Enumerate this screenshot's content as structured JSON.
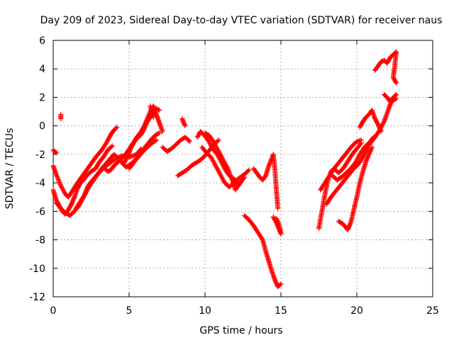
{
  "chart_data": {
    "type": "scatter",
    "title": "Day 209 of 2023, Sidereal Day-to-day VTEC variation (SDTVAR) for receiver naus",
    "xlabel": "GPS time / hours",
    "ylabel": "SDTVAR / TECUs",
    "xlim": [
      0,
      25
    ],
    "ylim": [
      -12,
      6
    ],
    "xticks": [
      0,
      5,
      10,
      15,
      20,
      25
    ],
    "yticks": [
      -12,
      -10,
      -8,
      -6,
      -4,
      -2,
      0,
      2,
      4,
      6
    ],
    "grid": true,
    "legend": "none",
    "marker": "+",
    "series": [
      {
        "name": "SDTVAR",
        "color": "#ff0000",
        "segments": [
          [
            [
              0.0,
              -4.5
            ],
            [
              0.2,
              -5.2
            ],
            [
              0.4,
              -5.6
            ],
            [
              0.6,
              -6.0
            ],
            [
              0.8,
              -6.2
            ],
            [
              1.0,
              -5.9
            ],
            [
              1.2,
              -5.5
            ],
            [
              1.4,
              -5.0
            ],
            [
              1.6,
              -4.4
            ],
            [
              1.8,
              -4.0
            ],
            [
              2.0,
              -3.8
            ],
            [
              2.2,
              -3.5
            ],
            [
              2.5,
              -3.2
            ],
            [
              2.8,
              -3.0
            ],
            [
              3.0,
              -2.6
            ],
            [
              3.3,
              -2.2
            ],
            [
              3.6,
              -1.7
            ],
            [
              3.9,
              -1.4
            ]
          ],
          [
            [
              0.0,
              -2.8
            ],
            [
              0.2,
              -3.4
            ],
            [
              0.5,
              -4.2
            ],
            [
              0.8,
              -4.8
            ],
            [
              1.0,
              -5.0
            ],
            [
              1.3,
              -4.5
            ],
            [
              1.6,
              -4.0
            ],
            [
              2.0,
              -3.4
            ],
            [
              2.4,
              -2.8
            ],
            [
              2.8,
              -2.2
            ],
            [
              3.2,
              -1.7
            ],
            [
              3.5,
              -1.2
            ],
            [
              3.8,
              -0.6
            ],
            [
              4.0,
              -0.3
            ],
            [
              4.2,
              -0.1
            ]
          ],
          [
            [
              0.0,
              -1.7
            ],
            [
              0.1,
              -1.8
            ],
            [
              0.2,
              -1.9
            ]
          ],
          [
            [
              0.5,
              0.8
            ],
            [
              0.5,
              0.5
            ]
          ],
          [
            [
              0.2,
              -5.4
            ],
            [
              0.5,
              -5.8
            ],
            [
              0.8,
              -6.1
            ],
            [
              1.1,
              -6.3
            ],
            [
              1.4,
              -6.0
            ],
            [
              1.7,
              -5.6
            ],
            [
              2.0,
              -5.0
            ],
            [
              2.3,
              -4.2
            ],
            [
              2.6,
              -3.8
            ],
            [
              3.0,
              -3.3
            ],
            [
              3.5,
              -2.8
            ],
            [
              4.0,
              -2.4
            ],
            [
              4.5,
              -2.1
            ],
            [
              5.0,
              -2.2
            ],
            [
              5.5,
              -2.0
            ],
            [
              5.8,
              -1.6
            ]
          ],
          [
            [
              1.5,
              -5.8
            ],
            [
              1.8,
              -5.3
            ],
            [
              2.1,
              -4.8
            ],
            [
              2.4,
              -4.2
            ],
            [
              2.8,
              -3.6
            ],
            [
              3.2,
              -3.0
            ],
            [
              3.6,
              -2.5
            ],
            [
              4.0,
              -2.0
            ],
            [
              4.4,
              -2.4
            ],
            [
              4.8,
              -2.9
            ],
            [
              5.2,
              -2.6
            ],
            [
              5.6,
              -2.2
            ],
            [
              6.0,
              -1.7
            ],
            [
              6.4,
              -1.3
            ],
            [
              6.8,
              -1.0
            ]
          ],
          [
            [
              3.4,
              -3.0
            ],
            [
              3.6,
              -3.2
            ],
            [
              3.8,
              -3.1
            ],
            [
              4.0,
              -2.8
            ],
            [
              4.3,
              -2.5
            ],
            [
              4.6,
              -2.2
            ],
            [
              4.9,
              -1.8
            ],
            [
              5.2,
              -1.3
            ],
            [
              5.5,
              -0.9
            ],
            [
              5.8,
              -0.6
            ],
            [
              6.0,
              -0.2
            ],
            [
              6.2,
              0.3
            ],
            [
              6.4,
              0.6
            ],
            [
              6.6,
              0.9
            ],
            [
              6.8,
              1.2
            ],
            [
              7.0,
              1.1
            ]
          ],
          [
            [
              4.6,
              -2.7
            ],
            [
              4.9,
              -2.2
            ],
            [
              5.1,
              -1.6
            ],
            [
              5.3,
              -1.2
            ],
            [
              5.5,
              -0.8
            ],
            [
              5.8,
              -0.4
            ],
            [
              6.0,
              0.0
            ],
            [
              6.2,
              0.5
            ],
            [
              6.4,
              1.0
            ],
            [
              6.6,
              1.4
            ],
            [
              6.8,
              0.8
            ],
            [
              7.0,
              0.2
            ],
            [
              7.2,
              -0.4
            ]
          ],
          [
            [
              5.0,
              -3.0
            ],
            [
              5.3,
              -2.6
            ],
            [
              5.6,
              -2.1
            ],
            [
              5.9,
              -1.7
            ],
            [
              6.2,
              -1.3
            ],
            [
              6.5,
              -0.9
            ],
            [
              6.8,
              -0.6
            ],
            [
              7.0,
              -0.5
            ]
          ],
          [
            [
              6.4,
              1.4
            ],
            [
              6.5,
              1.0
            ],
            [
              6.6,
              0.6
            ]
          ],
          [
            [
              7.2,
              -1.5
            ],
            [
              7.5,
              -1.8
            ],
            [
              7.8,
              -1.6
            ],
            [
              8.1,
              -1.3
            ],
            [
              8.4,
              -1.0
            ],
            [
              8.7,
              -0.8
            ],
            [
              9.0,
              -1.1
            ]
          ],
          [
            [
              8.5,
              0.5
            ],
            [
              8.6,
              0.2
            ],
            [
              8.7,
              0.0
            ]
          ],
          [
            [
              8.2,
              -3.5
            ],
            [
              8.5,
              -3.3
            ],
            [
              8.8,
              -3.1
            ],
            [
              9.1,
              -2.8
            ],
            [
              9.4,
              -2.6
            ],
            [
              9.7,
              -2.4
            ],
            [
              10.0,
              -2.1
            ],
            [
              10.3,
              -1.7
            ],
            [
              10.6,
              -1.3
            ],
            [
              10.9,
              -1.0
            ]
          ],
          [
            [
              9.5,
              -0.8
            ],
            [
              9.7,
              -0.4
            ],
            [
              9.9,
              -0.6
            ],
            [
              10.2,
              -1.0
            ],
            [
              10.5,
              -1.6
            ],
            [
              10.8,
              -2.0
            ],
            [
              11.1,
              -2.6
            ],
            [
              11.4,
              -3.2
            ],
            [
              11.7,
              -3.6
            ],
            [
              12.0,
              -3.8
            ],
            [
              12.2,
              -4.2
            ],
            [
              12.4,
              -3.9
            ]
          ],
          [
            [
              9.8,
              -1.5
            ],
            [
              10.1,
              -1.9
            ],
            [
              10.4,
              -2.2
            ],
            [
              10.7,
              -2.8
            ],
            [
              11.0,
              -3.4
            ],
            [
              11.3,
              -4.0
            ],
            [
              11.6,
              -4.3
            ],
            [
              11.9,
              -4.0
            ],
            [
              12.2,
              -3.7
            ],
            [
              12.6,
              -3.4
            ],
            [
              12.9,
              -3.1
            ]
          ],
          [
            [
              10.0,
              -0.5
            ],
            [
              10.3,
              -0.7
            ],
            [
              10.6,
              -1.2
            ],
            [
              10.9,
              -1.8
            ],
            [
              11.2,
              -2.4
            ],
            [
              11.5,
              -3.0
            ],
            [
              11.8,
              -3.8
            ],
            [
              12.0,
              -4.5
            ],
            [
              12.3,
              -4.0
            ],
            [
              12.6,
              -3.6
            ]
          ],
          [
            [
              13.2,
              -3.0
            ],
            [
              13.4,
              -3.3
            ],
            [
              13.6,
              -3.6
            ],
            [
              13.8,
              -3.8
            ],
            [
              14.0,
              -3.5
            ],
            [
              14.2,
              -2.8
            ],
            [
              14.4,
              -2.3
            ],
            [
              14.5,
              -2.0
            ],
            [
              14.6,
              -3.0
            ],
            [
              14.7,
              -4.5
            ],
            [
              14.8,
              -5.8
            ]
          ],
          [
            [
              12.6,
              -6.3
            ],
            [
              12.9,
              -6.6
            ],
            [
              13.2,
              -7.0
            ],
            [
              13.5,
              -7.5
            ],
            [
              13.8,
              -8.0
            ],
            [
              14.0,
              -8.8
            ],
            [
              14.2,
              -9.5
            ],
            [
              14.4,
              -10.2
            ],
            [
              14.6,
              -10.8
            ],
            [
              14.8,
              -11.3
            ],
            [
              15.0,
              -11.1
            ]
          ],
          [
            [
              14.5,
              -6.4
            ],
            [
              14.7,
              -6.8
            ],
            [
              14.9,
              -7.3
            ],
            [
              15.0,
              -7.6
            ],
            [
              14.9,
              -7.0
            ],
            [
              14.7,
              -6.5
            ]
          ],
          [
            [
              17.5,
              -7.2
            ],
            [
              17.7,
              -6.0
            ],
            [
              17.9,
              -4.8
            ],
            [
              18.1,
              -3.8
            ],
            [
              18.3,
              -3.2
            ],
            [
              18.5,
              -3.0
            ],
            [
              18.8,
              -3.3
            ],
            [
              19.1,
              -3.0
            ],
            [
              19.4,
              -2.5
            ],
            [
              19.7,
              -2.0
            ],
            [
              20.0,
              -1.6
            ],
            [
              20.3,
              -1.2
            ]
          ],
          [
            [
              17.6,
              -4.5
            ],
            [
              17.9,
              -4.0
            ],
            [
              18.2,
              -3.5
            ],
            [
              18.5,
              -3.0
            ],
            [
              18.8,
              -2.6
            ],
            [
              19.1,
              -2.2
            ],
            [
              19.4,
              -1.8
            ],
            [
              19.7,
              -1.4
            ],
            [
              20.0,
              -1.1
            ],
            [
              20.3,
              -1.0
            ]
          ],
          [
            [
              18.0,
              -5.5
            ],
            [
              18.3,
              -5.0
            ],
            [
              18.6,
              -4.6
            ],
            [
              18.9,
              -4.2
            ],
            [
              19.2,
              -3.8
            ],
            [
              19.5,
              -3.4
            ],
            [
              19.8,
              -3.0
            ],
            [
              20.1,
              -2.7
            ],
            [
              20.4,
              -2.2
            ],
            [
              20.7,
              -1.6
            ]
          ],
          [
            [
              18.4,
              -3.5
            ],
            [
              18.7,
              -3.8
            ],
            [
              19.0,
              -3.6
            ],
            [
              19.3,
              -3.3
            ],
            [
              19.6,
              -3.0
            ],
            [
              19.9,
              -2.6
            ],
            [
              20.2,
              -2.0
            ],
            [
              20.5,
              -1.5
            ],
            [
              20.8,
              -1.2
            ],
            [
              21.1,
              -0.8
            ]
          ],
          [
            [
              18.8,
              -6.7
            ],
            [
              19.1,
              -6.9
            ],
            [
              19.4,
              -7.3
            ],
            [
              19.6,
              -6.8
            ],
            [
              19.8,
              -5.9
            ],
            [
              20.0,
              -5.0
            ],
            [
              20.2,
              -4.0
            ],
            [
              20.4,
              -3.2
            ],
            [
              20.6,
              -2.5
            ],
            [
              20.8,
              -2.0
            ],
            [
              21.0,
              -1.5
            ]
          ],
          [
            [
              20.2,
              -0.1
            ],
            [
              20.4,
              0.3
            ],
            [
              20.6,
              0.6
            ],
            [
              20.8,
              0.8
            ],
            [
              21.0,
              1.1
            ],
            [
              21.2,
              0.5
            ],
            [
              21.4,
              0.1
            ],
            [
              21.6,
              -0.4
            ]
          ],
          [
            [
              20.6,
              -1.6
            ],
            [
              20.9,
              -1.2
            ],
            [
              21.2,
              -0.8
            ],
            [
              21.5,
              -0.3
            ],
            [
              21.8,
              0.3
            ],
            [
              22.0,
              0.9
            ],
            [
              22.2,
              1.5
            ],
            [
              22.4,
              2.0
            ],
            [
              22.6,
              2.2
            ]
          ],
          [
            [
              21.2,
              3.9
            ],
            [
              21.4,
              4.2
            ],
            [
              21.6,
              4.5
            ],
            [
              21.8,
              4.6
            ],
            [
              22.0,
              4.4
            ],
            [
              22.2,
              4.8
            ],
            [
              22.4,
              5.0
            ],
            [
              22.6,
              5.2
            ],
            [
              22.5,
              4.2
            ],
            [
              22.4,
              3.4
            ],
            [
              22.6,
              3.0
            ]
          ],
          [
            [
              21.8,
              2.2
            ],
            [
              22.0,
              2.0
            ],
            [
              22.2,
              1.7
            ],
            [
              22.4,
              1.8
            ],
            [
              22.6,
              1.9
            ]
          ]
        ]
      }
    ]
  }
}
